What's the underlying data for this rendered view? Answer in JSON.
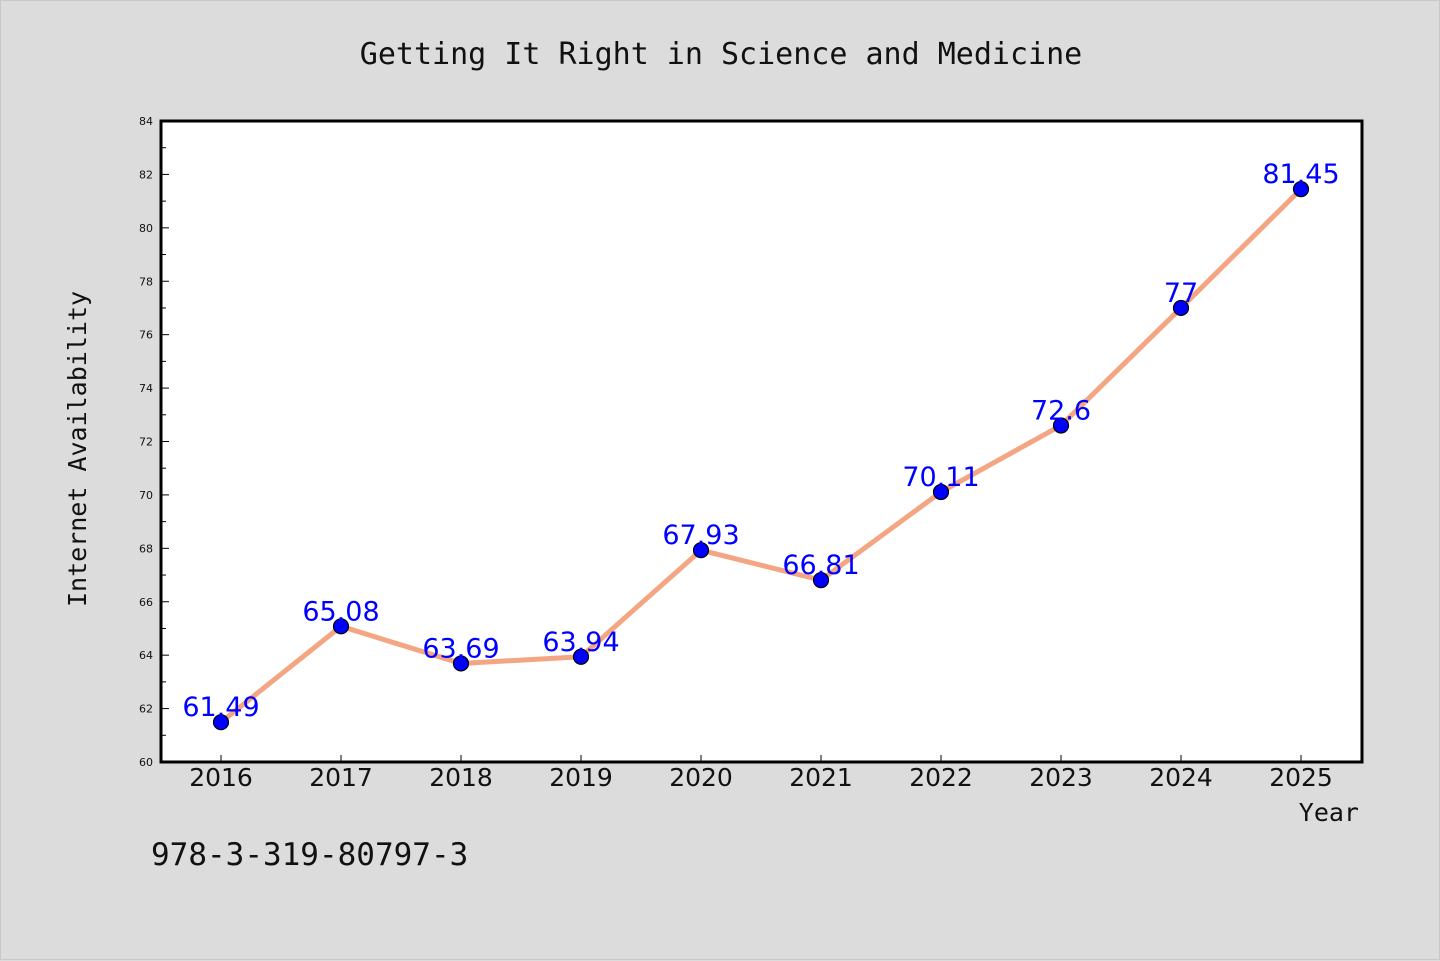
{
  "chart_data": {
    "type": "line",
    "title": "Getting It Right in Science and Medicine",
    "xlabel": "Year",
    "ylabel": "Internet Availability",
    "categories": [
      "2016",
      "2017",
      "2018",
      "2019",
      "2020",
      "2021",
      "2022",
      "2023",
      "2024",
      "2025"
    ],
    "series": [
      {
        "values": [
          61.49,
          65.08,
          63.69,
          63.94,
          67.93,
          66.81,
          70.11,
          72.6,
          77,
          81.45
        ],
        "data_labels": [
          "61.49",
          "65.08",
          "63.69",
          "63.94",
          "67.93",
          "66.81",
          "70.11",
          "72.6",
          "77",
          "81.45"
        ],
        "line_color": "#f4a582",
        "marker_color": "#0000ff",
        "label_color": "#0000ff"
      }
    ],
    "ylim": [
      60,
      84
    ],
    "yticks": [
      "60",
      "62",
      "64",
      "66",
      "68",
      "70",
      "72",
      "74",
      "76",
      "78",
      "80",
      "82",
      "84"
    ],
    "grid": false,
    "legend": false
  },
  "footer": {
    "isbn": "978-3-319-80797-3"
  }
}
